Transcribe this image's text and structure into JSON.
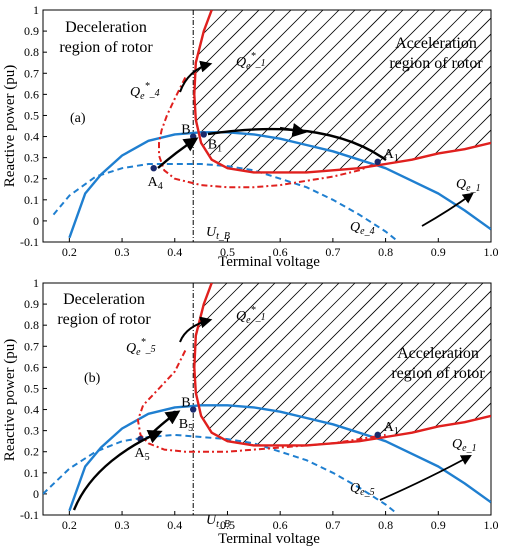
{
  "chart_data": [
    {
      "type": "line",
      "panel_label": "(a)",
      "xlabel": "Terminal voltage",
      "ylabel": "Reactive power (pu)",
      "xlim": [
        0.15,
        1.0
      ],
      "ylim": [
        -0.1,
        1.0
      ],
      "xticks": [
        "0.2",
        "0.3",
        "0.4",
        "0.5",
        "0.6",
        "0.7",
        "0.8",
        "0.9",
        "1.0"
      ],
      "yticks": [
        "-0.1",
        "0",
        "0.1",
        "0.2",
        "0.3",
        "0.4",
        "0.5",
        "0.6",
        "0.7",
        "0.8",
        "0.9",
        "1"
      ],
      "regions": {
        "deceleration": "Deceleration region of rotor",
        "acceleration": "Acceleration region of rotor"
      },
      "vline": {
        "x": 0.435,
        "label": "U_t_B"
      },
      "series": [
        {
          "name": "Q_e_1",
          "color": "#1f7fd0",
          "style": "solid",
          "x": [
            0.2,
            0.23,
            0.26,
            0.3,
            0.35,
            0.4,
            0.45,
            0.5,
            0.55,
            0.6,
            0.65,
            0.7,
            0.75,
            0.8,
            0.85,
            0.9,
            0.95,
            1.0
          ],
          "y": [
            -0.08,
            0.13,
            0.22,
            0.31,
            0.38,
            0.41,
            0.42,
            0.42,
            0.41,
            0.39,
            0.36,
            0.33,
            0.29,
            0.25,
            0.19,
            0.13,
            0.05,
            -0.04
          ]
        },
        {
          "name": "Q_e_4",
          "color": "#1f7fd0",
          "style": "dashed",
          "x": [
            0.17,
            0.2,
            0.25,
            0.3,
            0.35,
            0.4,
            0.45,
            0.5,
            0.55,
            0.6,
            0.65,
            0.7,
            0.75,
            0.8,
            0.82
          ],
          "y": [
            0.03,
            0.12,
            0.21,
            0.25,
            0.27,
            0.27,
            0.27,
            0.26,
            0.24,
            0.2,
            0.16,
            0.1,
            0.03,
            -0.05,
            -0.09
          ]
        },
        {
          "name": "Q_e*_1",
          "color": "#e0201e",
          "style": "solid",
          "x": [
            0.47,
            0.455,
            0.44,
            0.437,
            0.44,
            0.45,
            0.47,
            0.5,
            0.55,
            0.6,
            0.65,
            0.7,
            0.75,
            0.8,
            0.85,
            0.9,
            0.95,
            1.0
          ],
          "y": [
            1.0,
            0.9,
            0.75,
            0.6,
            0.48,
            0.37,
            0.29,
            0.25,
            0.23,
            0.23,
            0.23,
            0.24,
            0.25,
            0.27,
            0.29,
            0.32,
            0.34,
            0.37
          ]
        },
        {
          "name": "Q_e*_4",
          "color": "#e0201e",
          "style": "dashdot",
          "x": [
            0.42,
            0.4,
            0.385,
            0.375,
            0.37,
            0.37,
            0.38,
            0.4,
            0.45,
            0.5,
            0.55,
            0.6,
            0.65,
            0.7,
            0.75,
            0.78
          ],
          "y": [
            0.68,
            0.58,
            0.5,
            0.43,
            0.37,
            0.31,
            0.24,
            0.2,
            0.17,
            0.16,
            0.16,
            0.17,
            0.19,
            0.21,
            0.24,
            0.27
          ]
        }
      ],
      "points": [
        {
          "label": "B",
          "x": 0.435,
          "y": 0.4
        },
        {
          "label": "B1",
          "x": 0.455,
          "y": 0.41
        },
        {
          "label": "A4",
          "x": 0.36,
          "y": 0.25
        },
        {
          "label": "A1",
          "x": 0.785,
          "y": 0.28
        }
      ],
      "annotations": [
        "Q_e*_1",
        "Q_e*_4",
        "Q_e_1",
        "Q_e_4",
        "B",
        "B1",
        "A4",
        "A1",
        "U_t_B"
      ]
    },
    {
      "type": "line",
      "panel_label": "(b)",
      "xlabel": "Terminal voltage",
      "ylabel": "Reactive power (pu)",
      "xlim": [
        0.15,
        1.0
      ],
      "ylim": [
        -0.1,
        1.0
      ],
      "xticks": [
        "0.2",
        "0.3",
        "0.4",
        "0.5",
        "0.6",
        "0.7",
        "0.8",
        "0.9",
        "1.0"
      ],
      "yticks": [
        "-0.1",
        "0",
        "0.1",
        "0.2",
        "0.3",
        "0.4",
        "0.5",
        "0.6",
        "0.7",
        "0.8",
        "0.9",
        "1"
      ],
      "regions": {
        "deceleration": "Deceleration region of rotor",
        "acceleration": "Acceleration region of rotor"
      },
      "vline": {
        "x": 0.435,
        "label": "U_t_B"
      },
      "series": [
        {
          "name": "Q_e_1",
          "color": "#1f7fd0",
          "style": "solid",
          "x": [
            0.2,
            0.23,
            0.26,
            0.3,
            0.35,
            0.4,
            0.45,
            0.5,
            0.55,
            0.6,
            0.65,
            0.7,
            0.75,
            0.8,
            0.85,
            0.9,
            0.95,
            1.0
          ],
          "y": [
            -0.08,
            0.13,
            0.22,
            0.31,
            0.38,
            0.41,
            0.42,
            0.42,
            0.41,
            0.39,
            0.36,
            0.33,
            0.29,
            0.25,
            0.19,
            0.13,
            0.05,
            -0.04
          ]
        },
        {
          "name": "Q_e_5",
          "color": "#1f7fd0",
          "style": "dashed",
          "x": [
            0.15,
            0.2,
            0.25,
            0.3,
            0.35,
            0.4,
            0.45,
            0.5,
            0.55,
            0.6,
            0.65,
            0.7,
            0.75,
            0.8,
            0.82
          ],
          "y": [
            0.0,
            0.12,
            0.2,
            0.25,
            0.27,
            0.28,
            0.27,
            0.26,
            0.24,
            0.2,
            0.16,
            0.1,
            0.03,
            -0.05,
            -0.09
          ]
        },
        {
          "name": "Q_e*_1",
          "color": "#e0201e",
          "style": "solid",
          "x": [
            0.47,
            0.455,
            0.44,
            0.437,
            0.44,
            0.45,
            0.47,
            0.5,
            0.55,
            0.6,
            0.65,
            0.7,
            0.75,
            0.8,
            0.85,
            0.9,
            0.95,
            1.0
          ],
          "y": [
            1.0,
            0.9,
            0.75,
            0.6,
            0.48,
            0.37,
            0.29,
            0.25,
            0.23,
            0.23,
            0.23,
            0.24,
            0.25,
            0.27,
            0.29,
            0.32,
            0.34,
            0.37
          ]
        },
        {
          "name": "Q_e*_5",
          "color": "#e0201e",
          "style": "dashdot",
          "x": [
            0.42,
            0.4,
            0.37,
            0.34,
            0.33,
            0.335,
            0.35,
            0.38,
            0.42,
            0.5,
            0.55,
            0.6,
            0.65,
            0.7,
            0.75,
            0.8
          ],
          "y": [
            0.68,
            0.58,
            0.5,
            0.42,
            0.35,
            0.28,
            0.24,
            0.21,
            0.2,
            0.2,
            0.21,
            0.22,
            0.23,
            0.24,
            0.26,
            0.28
          ]
        }
      ],
      "points": [
        {
          "label": "B",
          "x": 0.435,
          "y": 0.4
        },
        {
          "label": "B5",
          "x": 0.4,
          "y": 0.38
        },
        {
          "label": "A5",
          "x": 0.335,
          "y": 0.26
        },
        {
          "label": "A1",
          "x": 0.785,
          "y": 0.28
        }
      ],
      "annotations": [
        "Q_e*_1",
        "Q_e*_5",
        "Q_e_1",
        "Q_e_5",
        "B",
        "B5",
        "A5",
        "A1",
        "U_t_B"
      ]
    }
  ]
}
